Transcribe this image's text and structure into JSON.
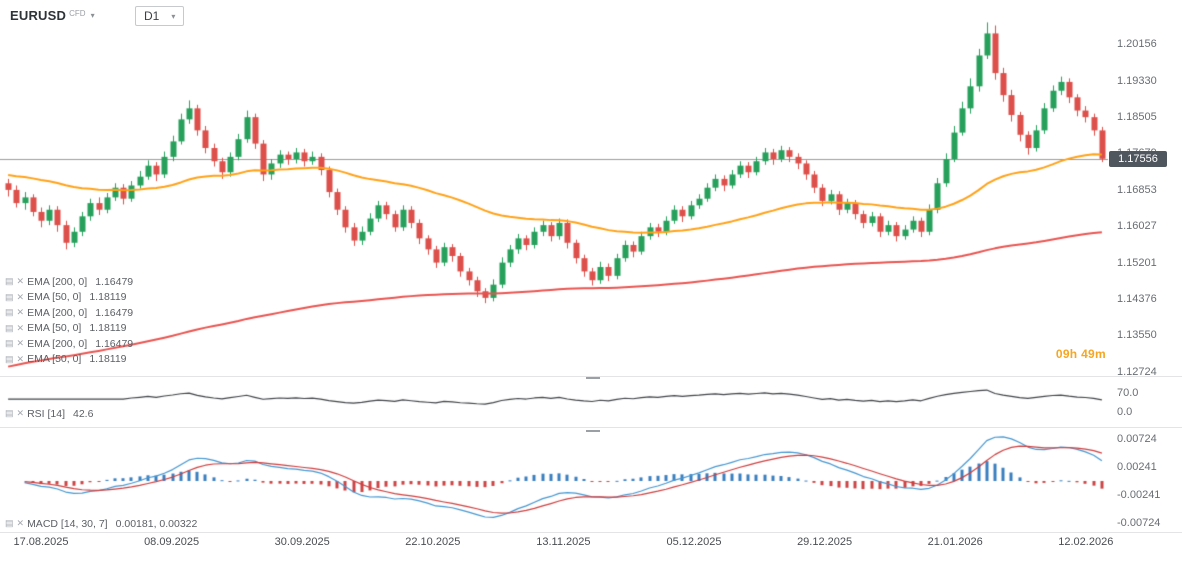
{
  "header": {
    "symbol": "EURUSD",
    "symbol_badge": "CFD",
    "timeframe": "D1"
  },
  "icons": {
    "chevron_down": "▾",
    "close": "✕",
    "settings": "▤"
  },
  "legend": {
    "main": [
      {
        "label": "EMA [200, 0]",
        "value": "1.16479"
      },
      {
        "label": "EMA [50, 0]",
        "value": "1.18119"
      },
      {
        "label": "EMA [200, 0]",
        "value": "1.16479"
      },
      {
        "label": "EMA [50, 0]",
        "value": "1.18119"
      },
      {
        "label": "EMA [200, 0]",
        "value": "1.16479"
      },
      {
        "label": "EMA [50, 0]",
        "value": "1.18119"
      }
    ],
    "rsi": {
      "label": "RSI [14]",
      "value": "42.6"
    },
    "macd": {
      "label": "MACD [14, 30, 7]",
      "value": "0.00181,  0.00322"
    }
  },
  "colors": {
    "candle_up": "#27a05c",
    "candle_down": "#dd4f4a",
    "ema50": "#ffa116",
    "ema200": "#e8534f",
    "rsi_line": "#3f4246",
    "macd_line": "#4596d1",
    "macd_signal": "#cf3d3d",
    "hist_up": "#3a7fbf",
    "hist_down": "#cc4444",
    "countdown": "#f5a623",
    "price_badge_bg": "#50565e"
  },
  "chart_data": {
    "type": "candlestick",
    "symbol": "EURUSD",
    "timeframe": "D1",
    "current_price": "1.17556",
    "countdown": "09h 49m",
    "price_range": [
      1.1265,
      1.2075
    ],
    "price_axis_labels": [
      "1.20156",
      "1.19330",
      "1.18505",
      "1.17679",
      "1.16853",
      "1.16027",
      "1.15201",
      "1.14376",
      "1.13550",
      "1.12724"
    ],
    "rsi_axis_labels": [
      "70.0",
      "0.0"
    ],
    "macd_axis_labels": [
      "0.00724",
      "0.00241",
      "-0.00241",
      "-0.00724"
    ],
    "date_axis_labels": [
      "17.08.2025",
      "08.09.2025",
      "30.09.2025",
      "22.10.2025",
      "13.11.2025",
      "05.12.2025",
      "29.12.2025",
      "21.01.2026",
      "12.02.2026"
    ],
    "indicators": {
      "ema": [
        {
          "period": 200,
          "shift": 0,
          "value": 1.16479,
          "seed": 1.128
        },
        {
          "period": 50,
          "shift": 0,
          "value": 1.18119,
          "seed": 1.172
        }
      ],
      "rsi": {
        "period": 14,
        "value": 42.6
      },
      "macd": {
        "fast": 14,
        "slow": 30,
        "signal": 7,
        "values": [
          0.00181,
          0.00322
        ]
      }
    },
    "candles": [
      [
        1.17,
        1.171,
        1.167,
        1.1685
      ],
      [
        1.1685,
        1.1695,
        1.1645,
        1.1655
      ],
      [
        1.1655,
        1.168,
        1.164,
        1.1668
      ],
      [
        1.1668,
        1.1675,
        1.1625,
        1.1635
      ],
      [
        1.1635,
        1.1645,
        1.16,
        1.1615
      ],
      [
        1.1615,
        1.165,
        1.1605,
        1.164
      ],
      [
        1.164,
        1.1648,
        1.159,
        1.1605
      ],
      [
        1.1605,
        1.1615,
        1.155,
        1.1565
      ],
      [
        1.1565,
        1.16,
        1.1555,
        1.159
      ],
      [
        1.159,
        1.1635,
        1.158,
        1.1625
      ],
      [
        1.1625,
        1.1665,
        1.1615,
        1.1655
      ],
      [
        1.1655,
        1.1668,
        1.1628,
        1.164
      ],
      [
        1.164,
        1.1678,
        1.1632,
        1.1668
      ],
      [
        1.1668,
        1.17,
        1.166,
        1.169
      ],
      [
        1.169,
        1.1698,
        1.1652,
        1.1665
      ],
      [
        1.1665,
        1.1705,
        1.1658,
        1.1695
      ],
      [
        1.1695,
        1.1728,
        1.1688,
        1.1715
      ],
      [
        1.1715,
        1.1752,
        1.1708,
        1.174
      ],
      [
        1.174,
        1.1748,
        1.1705,
        1.172
      ],
      [
        1.172,
        1.1772,
        1.1712,
        1.176
      ],
      [
        1.176,
        1.1808,
        1.175,
        1.1795
      ],
      [
        1.1795,
        1.1858,
        1.1788,
        1.1845
      ],
      [
        1.1845,
        1.1888,
        1.1835,
        1.187
      ],
      [
        1.187,
        1.1878,
        1.1808,
        1.182
      ],
      [
        1.182,
        1.183,
        1.1768,
        1.178
      ],
      [
        1.178,
        1.179,
        1.1738,
        1.175
      ],
      [
        1.175,
        1.1758,
        1.171,
        1.1725
      ],
      [
        1.1725,
        1.177,
        1.1715,
        1.176
      ],
      [
        1.176,
        1.1812,
        1.1752,
        1.18
      ],
      [
        1.18,
        1.1865,
        1.1792,
        1.185
      ],
      [
        1.185,
        1.1858,
        1.1778,
        1.179
      ],
      [
        1.179,
        1.1798,
        1.1705,
        1.172
      ],
      [
        1.172,
        1.1755,
        1.1708,
        1.1745
      ],
      [
        1.1745,
        1.1775,
        1.1735,
        1.1765
      ],
      [
        1.1765,
        1.1772,
        1.1742,
        1.1755
      ],
      [
        1.1755,
        1.178,
        1.1745,
        1.177
      ],
      [
        1.177,
        1.1778,
        1.1738,
        1.175
      ],
      [
        1.175,
        1.1772,
        1.1742,
        1.176
      ],
      [
        1.176,
        1.1768,
        1.1718,
        1.173
      ],
      [
        1.173,
        1.1738,
        1.1668,
        1.168
      ],
      [
        1.168,
        1.1688,
        1.1628,
        1.164
      ],
      [
        1.164,
        1.1648,
        1.1588,
        1.16
      ],
      [
        1.16,
        1.161,
        1.1558,
        1.157
      ],
      [
        1.157,
        1.1602,
        1.156,
        1.159
      ],
      [
        1.159,
        1.1632,
        1.1582,
        1.162
      ],
      [
        1.162,
        1.166,
        1.1612,
        1.165
      ],
      [
        1.165,
        1.1658,
        1.1618,
        1.163
      ],
      [
        1.163,
        1.1638,
        1.159,
        1.16
      ],
      [
        1.16,
        1.165,
        1.1592,
        1.164
      ],
      [
        1.164,
        1.1648,
        1.1598,
        1.161
      ],
      [
        1.161,
        1.1618,
        1.1562,
        1.1575
      ],
      [
        1.1575,
        1.1582,
        1.1538,
        1.155
      ],
      [
        1.155,
        1.1558,
        1.1508,
        1.152
      ],
      [
        1.152,
        1.1565,
        1.1512,
        1.1555
      ],
      [
        1.1555,
        1.1562,
        1.1522,
        1.1535
      ],
      [
        1.1535,
        1.1542,
        1.1488,
        1.15
      ],
      [
        1.15,
        1.1508,
        1.1468,
        1.148
      ],
      [
        1.148,
        1.1488,
        1.1442,
        1.1455
      ],
      [
        1.1455,
        1.1462,
        1.1428,
        1.144
      ],
      [
        1.144,
        1.1482,
        1.1432,
        1.147
      ],
      [
        1.147,
        1.1532,
        1.1462,
        1.152
      ],
      [
        1.152,
        1.156,
        1.151,
        1.155
      ],
      [
        1.155,
        1.1585,
        1.154,
        1.1575
      ],
      [
        1.1575,
        1.1582,
        1.1548,
        1.156
      ],
      [
        1.156,
        1.16,
        1.1552,
        1.159
      ],
      [
        1.159,
        1.1615,
        1.158,
        1.1605
      ],
      [
        1.1605,
        1.1612,
        1.1568,
        1.158
      ],
      [
        1.158,
        1.162,
        1.1572,
        1.161
      ],
      [
        1.161,
        1.1618,
        1.1552,
        1.1565
      ],
      [
        1.1565,
        1.1572,
        1.1518,
        1.153
      ],
      [
        1.153,
        1.1538,
        1.1488,
        1.15
      ],
      [
        1.15,
        1.1508,
        1.1468,
        1.148
      ],
      [
        1.148,
        1.1522,
        1.1472,
        1.151
      ],
      [
        1.151,
        1.1518,
        1.1478,
        1.149
      ],
      [
        1.149,
        1.154,
        1.1482,
        1.153
      ],
      [
        1.153,
        1.157,
        1.1522,
        1.156
      ],
      [
        1.156,
        1.1568,
        1.1532,
        1.1545
      ],
      [
        1.1545,
        1.159,
        1.1538,
        1.158
      ],
      [
        1.158,
        1.161,
        1.1572,
        1.16
      ],
      [
        1.16,
        1.1608,
        1.1578,
        1.159
      ],
      [
        1.159,
        1.1625,
        1.1582,
        1.1615
      ],
      [
        1.1615,
        1.165,
        1.1608,
        1.164
      ],
      [
        1.164,
        1.1648,
        1.1612,
        1.1625
      ],
      [
        1.1625,
        1.166,
        1.1618,
        1.165
      ],
      [
        1.165,
        1.1675,
        1.1642,
        1.1665
      ],
      [
        1.1665,
        1.17,
        1.1658,
        1.169
      ],
      [
        1.169,
        1.172,
        1.1682,
        1.171
      ],
      [
        1.171,
        1.1718,
        1.1682,
        1.1695
      ],
      [
        1.1695,
        1.173,
        1.1688,
        1.172
      ],
      [
        1.172,
        1.175,
        1.1712,
        1.174
      ],
      [
        1.174,
        1.1748,
        1.1712,
        1.1725
      ],
      [
        1.1725,
        1.176,
        1.1718,
        1.175
      ],
      [
        1.175,
        1.178,
        1.1742,
        1.177
      ],
      [
        1.177,
        1.1778,
        1.1742,
        1.1755
      ],
      [
        1.1755,
        1.1785,
        1.1748,
        1.1775
      ],
      [
        1.1775,
        1.1782,
        1.1748,
        1.176
      ],
      [
        1.176,
        1.1768,
        1.1732,
        1.1745
      ],
      [
        1.1745,
        1.1752,
        1.1708,
        1.172
      ],
      [
        1.172,
        1.1728,
        1.1678,
        1.169
      ],
      [
        1.169,
        1.1698,
        1.1648,
        1.166
      ],
      [
        1.166,
        1.1685,
        1.1652,
        1.1675
      ],
      [
        1.1675,
        1.1682,
        1.1628,
        1.164
      ],
      [
        1.164,
        1.1665,
        1.1632,
        1.1655
      ],
      [
        1.1655,
        1.1662,
        1.1618,
        1.163
      ],
      [
        1.163,
        1.1638,
        1.1598,
        1.161
      ],
      [
        1.161,
        1.1635,
        1.1602,
        1.1625
      ],
      [
        1.1625,
        1.1632,
        1.1578,
        1.159
      ],
      [
        1.159,
        1.1615,
        1.1582,
        1.1605
      ],
      [
        1.1605,
        1.1612,
        1.1568,
        1.158
      ],
      [
        1.158,
        1.1605,
        1.1572,
        1.1595
      ],
      [
        1.1595,
        1.1625,
        1.1588,
        1.1615
      ],
      [
        1.1615,
        1.1622,
        1.1578,
        1.159
      ],
      [
        1.159,
        1.1652,
        1.1582,
        1.164
      ],
      [
        1.164,
        1.1712,
        1.1632,
        1.17
      ],
      [
        1.17,
        1.1768,
        1.1692,
        1.1755
      ],
      [
        1.1755,
        1.183,
        1.1748,
        1.1815
      ],
      [
        1.1815,
        1.1885,
        1.1808,
        1.187
      ],
      [
        1.187,
        1.1938,
        1.1858,
        1.192
      ],
      [
        1.192,
        1.2005,
        1.1908,
        1.199
      ],
      [
        1.199,
        1.2065,
        1.1982,
        1.204
      ],
      [
        1.204,
        1.2058,
        1.1935,
        1.195
      ],
      [
        1.195,
        1.1962,
        1.1885,
        1.19
      ],
      [
        1.19,
        1.1912,
        1.184,
        1.1855
      ],
      [
        1.1855,
        1.1862,
        1.1795,
        1.181
      ],
      [
        1.181,
        1.1818,
        1.1765,
        1.178
      ],
      [
        1.178,
        1.1832,
        1.1772,
        1.182
      ],
      [
        1.182,
        1.1882,
        1.1812,
        1.187
      ],
      [
        1.187,
        1.1922,
        1.1862,
        1.191
      ],
      [
        1.191,
        1.1942,
        1.19,
        1.193
      ],
      [
        1.193,
        1.1938,
        1.1882,
        1.1895
      ],
      [
        1.1895,
        1.1902,
        1.1852,
        1.1865
      ],
      [
        1.1865,
        1.1875,
        1.1838,
        1.185
      ],
      [
        1.185,
        1.1858,
        1.1808,
        1.182
      ],
      [
        1.182,
        1.1828,
        1.1748,
        1.17556
      ]
    ]
  }
}
